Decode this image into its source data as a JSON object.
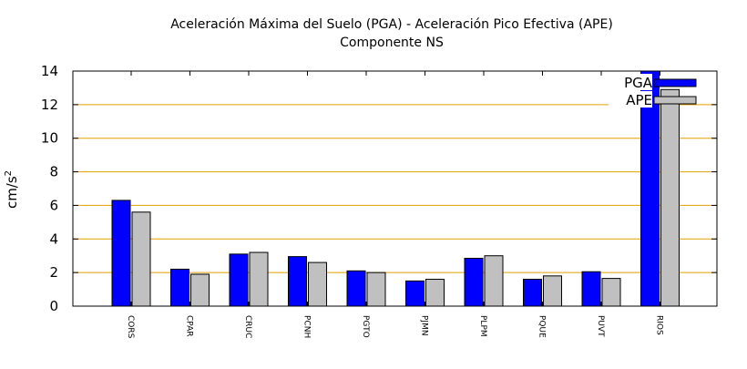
{
  "chart_data": {
    "type": "bar",
    "title": "Aceleración Máxima del Suelo (PGA) -  Aceleración Pico Efectiva (APE)",
    "subtitle": "Componente NS",
    "xlabel": "",
    "ylabel": "cm/s",
    "ylabel_superscript": "2",
    "ylim": [
      0,
      14
    ],
    "yticks": [
      0,
      2,
      4,
      6,
      8,
      10,
      12,
      14
    ],
    "grid": true,
    "legend_position": "top-right",
    "categories": [
      "CORS",
      "CPAR",
      "CRUC",
      "PCNH",
      "PGTO",
      "PJMN",
      "PLPM",
      "PQUE",
      "PUVT",
      "RIOS"
    ],
    "series": [
      {
        "name": "PGA",
        "color": "#0000ff",
        "values": [
          6.3,
          2.2,
          3.1,
          2.95,
          2.1,
          1.5,
          2.85,
          1.6,
          2.05,
          14.0
        ]
      },
      {
        "name": "APE",
        "color": "#c0c0c0",
        "values": [
          5.6,
          1.9,
          3.2,
          2.6,
          2.0,
          1.6,
          3.0,
          1.8,
          1.65,
          12.9
        ]
      }
    ],
    "colors": {
      "grid": "#e0a000",
      "axis": "#000000"
    }
  }
}
